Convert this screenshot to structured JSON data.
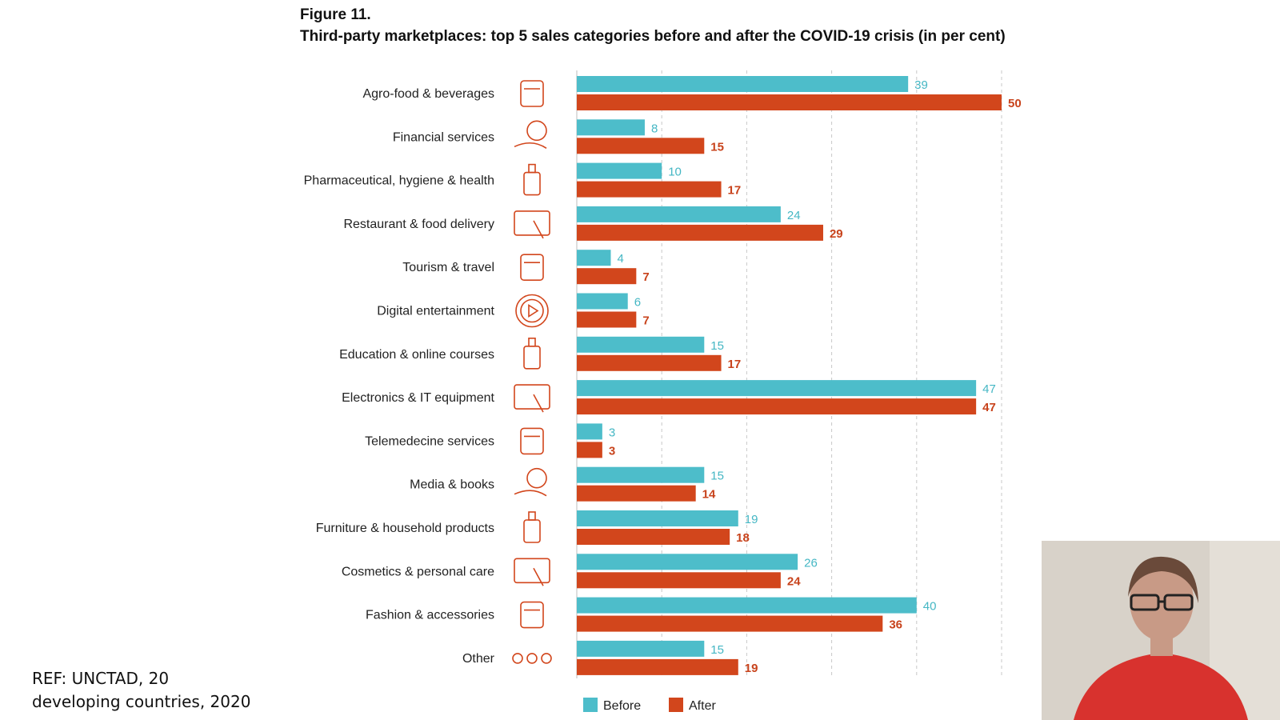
{
  "figure": {
    "label": "Figure 11.",
    "title": "Third-party marketplaces: top 5 sales categories before and after the COVID-19 crisis (in per cent)"
  },
  "colors": {
    "before": "#4dbdca",
    "after": "#d2461c",
    "grid": "#c8c8c8"
  },
  "chart_data": {
    "type": "bar",
    "orientation": "horizontal",
    "categories": [
      "Agro-food & beverages",
      "Financial services",
      "Pharmaceutical, hygiene & health",
      "Restaurant & food delivery",
      "Tourism & travel",
      "Digital entertainment",
      "Education & online courses",
      "Electronics & IT equipment",
      "Telemedecine services",
      "Media & books",
      "Furniture & household products",
      "Cosmetics & personal care",
      "Fashion & accessories",
      "Other"
    ],
    "icons": [
      "drink-cup-icon",
      "money-hand-icon",
      "soap-bottle-icon",
      "tablet-touch-icon",
      "luggage-location-icon",
      "play-circle-icon",
      "graduation-laptop-icon",
      "usb-cable-icon",
      "doctor-headset-icon",
      "book-cursor-icon",
      "stacked-bowls-icon",
      "cosmetics-bottles-icon",
      "sun-hat-icon",
      "three-dots-icon"
    ],
    "series": [
      {
        "name": "Before",
        "values": [
          39,
          8,
          10,
          24,
          4,
          6,
          15,
          47,
          3,
          15,
          19,
          26,
          40,
          15
        ]
      },
      {
        "name": "After",
        "values": [
          50,
          15,
          17,
          29,
          7,
          7,
          17,
          47,
          3,
          14,
          18,
          24,
          36,
          19
        ]
      }
    ],
    "xlim": [
      0,
      50
    ],
    "grid": true,
    "legend_position": "bottom"
  },
  "reference": {
    "line1": "REF: UNCTAD, 20",
    "line2": "developing countries, 2020"
  },
  "webcam": {
    "icon": "presenter-video-icon"
  }
}
